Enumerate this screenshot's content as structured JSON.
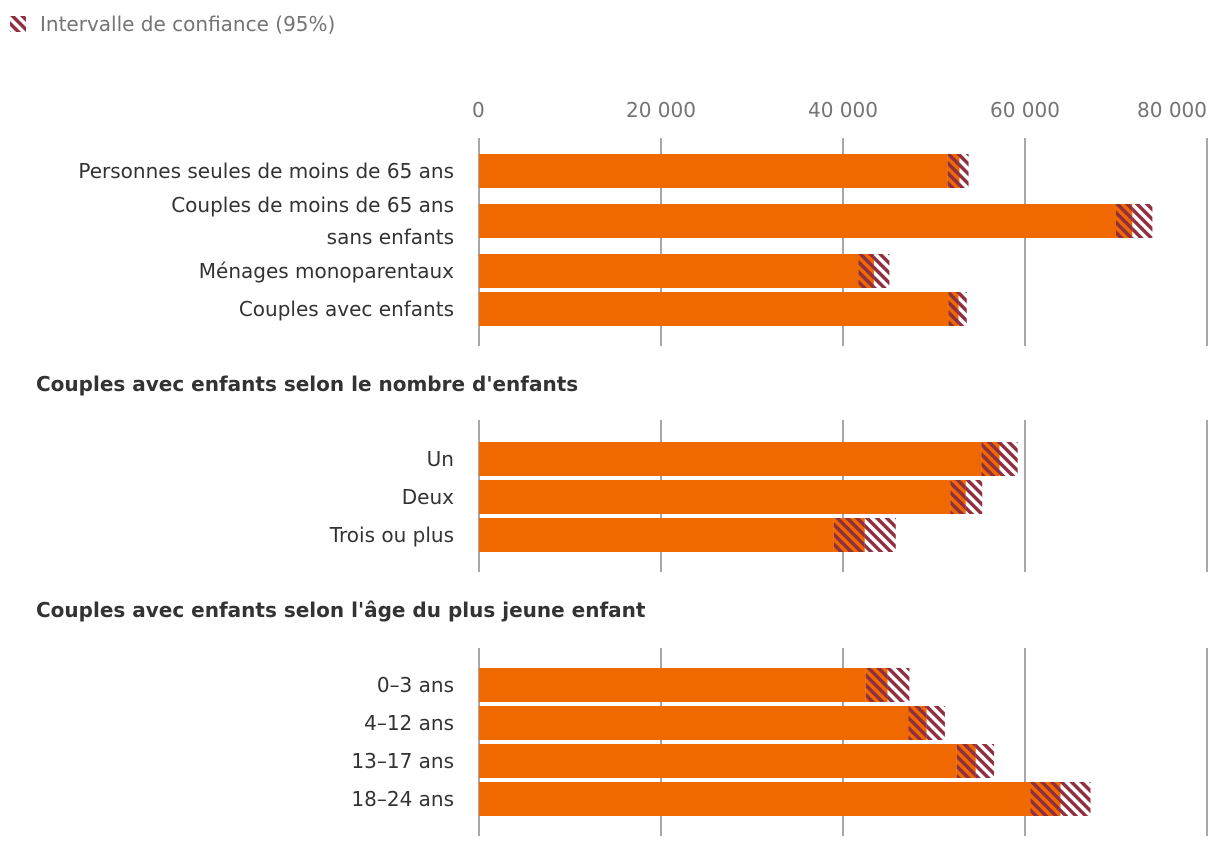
{
  "legend": {
    "label": "Intervalle de confiance (95%)",
    "icon": "hatched-swatch-icon"
  },
  "colors": {
    "bar": "#f06800",
    "ci": "#8f2f3f",
    "grid": "#8c8c8c",
    "tick_text": "#757575",
    "label_text": "#333333"
  },
  "chart_data": {
    "type": "bar",
    "orientation": "horizontal",
    "xlim": [
      0,
      80000
    ],
    "ticks": [
      {
        "value": 0,
        "label": "0"
      },
      {
        "value": 20000,
        "label": "20 000"
      },
      {
        "value": 40000,
        "label": "40 000"
      },
      {
        "value": 60000,
        "label": "60 000"
      },
      {
        "value": 80000,
        "label": "80 000"
      }
    ],
    "grid": true,
    "legend_position": "top-left",
    "groups": [
      {
        "title": "",
        "bars": [
          {
            "label": [
              "Personnes seules de moins de 65 ans"
            ],
            "value": 52800,
            "ci_low": 51500,
            "ci_high": 53800
          },
          {
            "label": [
              "Couples de moins de 65 ans",
              "sans enfants"
            ],
            "value": 71800,
            "ci_low": 70000,
            "ci_high": 74000
          },
          {
            "label": [
              "Ménages monoparentaux"
            ],
            "value": 43400,
            "ci_low": 41700,
            "ci_high": 45100
          },
          {
            "label": [
              "Couples avec enfants"
            ],
            "value": 52700,
            "ci_low": 51600,
            "ci_high": 53600
          }
        ]
      },
      {
        "title": "Couples avec enfants selon le nombre d'enfants",
        "bars": [
          {
            "label": [
              "Un"
            ],
            "value": 57200,
            "ci_low": 55200,
            "ci_high": 59200
          },
          {
            "label": [
              "Deux"
            ],
            "value": 53500,
            "ci_low": 51800,
            "ci_high": 55300
          },
          {
            "label": [
              "Trois ou plus"
            ],
            "value": 42400,
            "ci_low": 39000,
            "ci_high": 45800
          }
        ]
      },
      {
        "title": "Couples avec enfants selon l'âge du plus jeune enfant",
        "bars": [
          {
            "label": [
              "0–3 ans"
            ],
            "value": 44900,
            "ci_low": 42500,
            "ci_high": 47300
          },
          {
            "label": [
              "4–12 ans"
            ],
            "value": 49200,
            "ci_low": 47200,
            "ci_high": 51200
          },
          {
            "label": [
              "13–17 ans"
            ],
            "value": 54600,
            "ci_low": 52500,
            "ci_high": 56600
          },
          {
            "label": [
              "18–24 ans"
            ],
            "value": 63900,
            "ci_low": 60600,
            "ci_high": 67200
          }
        ]
      }
    ]
  }
}
